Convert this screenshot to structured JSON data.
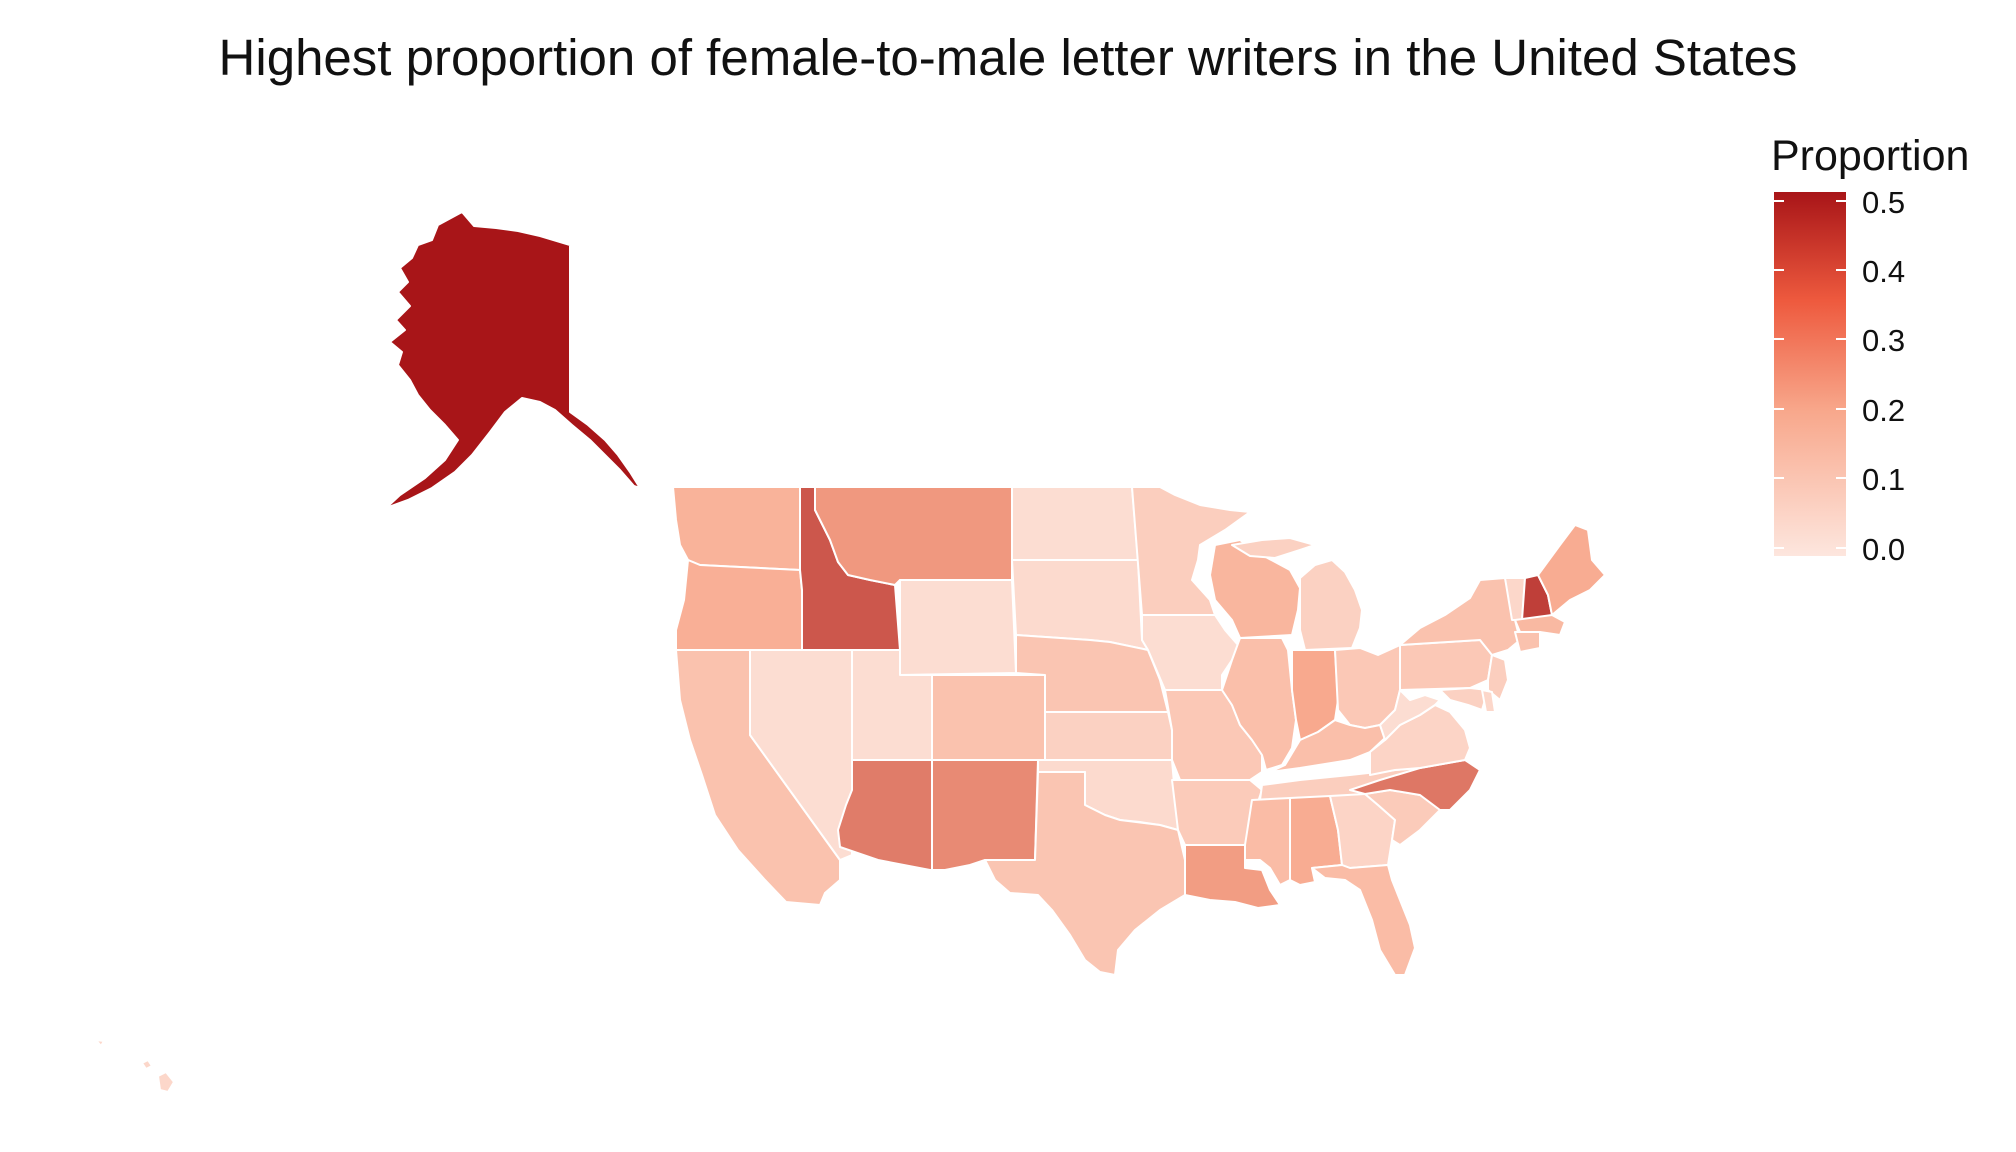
{
  "title": "Highest proportion of female-to-male letter writers in the United States",
  "legend": {
    "title": "Proportion",
    "ticks": [
      "0.5",
      "0.4",
      "0.3",
      "0.2",
      "0.1",
      "0.0"
    ],
    "range": [
      0.0,
      0.52
    ]
  },
  "color_scale": {
    "low": "#fde6de",
    "mid": "#f8a78b",
    "high": "#a81518"
  },
  "map": {
    "type": "choropleth",
    "region": "United States",
    "states": {
      "AK": 0.52,
      "HI": 0.05,
      "WA": 0.17,
      "OR": 0.18,
      "CA": 0.12,
      "NV": 0.03,
      "ID": 0.38,
      "MT": 0.24,
      "WY": 0.03,
      "UT": 0.03,
      "AZ": 0.3,
      "NM": 0.27,
      "CO": 0.12,
      "ND": 0.03,
      "SD": 0.04,
      "NE": 0.11,
      "KS": 0.07,
      "OK": 0.04,
      "TX": 0.11,
      "MN": 0.08,
      "IA": 0.03,
      "MO": 0.1,
      "AR": 0.09,
      "LA": 0.23,
      "WI": 0.16,
      "IL": 0.13,
      "MI": 0.07,
      "IN": 0.2,
      "OH": 0.1,
      "KY": 0.13,
      "TN": 0.08,
      "MS": 0.14,
      "AL": 0.19,
      "GA": 0.06,
      "FL": 0.14,
      "SC": 0.09,
      "NC": 0.31,
      "VA": 0.06,
      "WV": 0.03,
      "PA": 0.1,
      "NY": 0.12,
      "VT": 0.05,
      "NH": 0.43,
      "ME": 0.19,
      "MA": 0.15,
      "CT": 0.12,
      "NJ": 0.08,
      "MD": 0.07,
      "DE": 0.05
    }
  }
}
